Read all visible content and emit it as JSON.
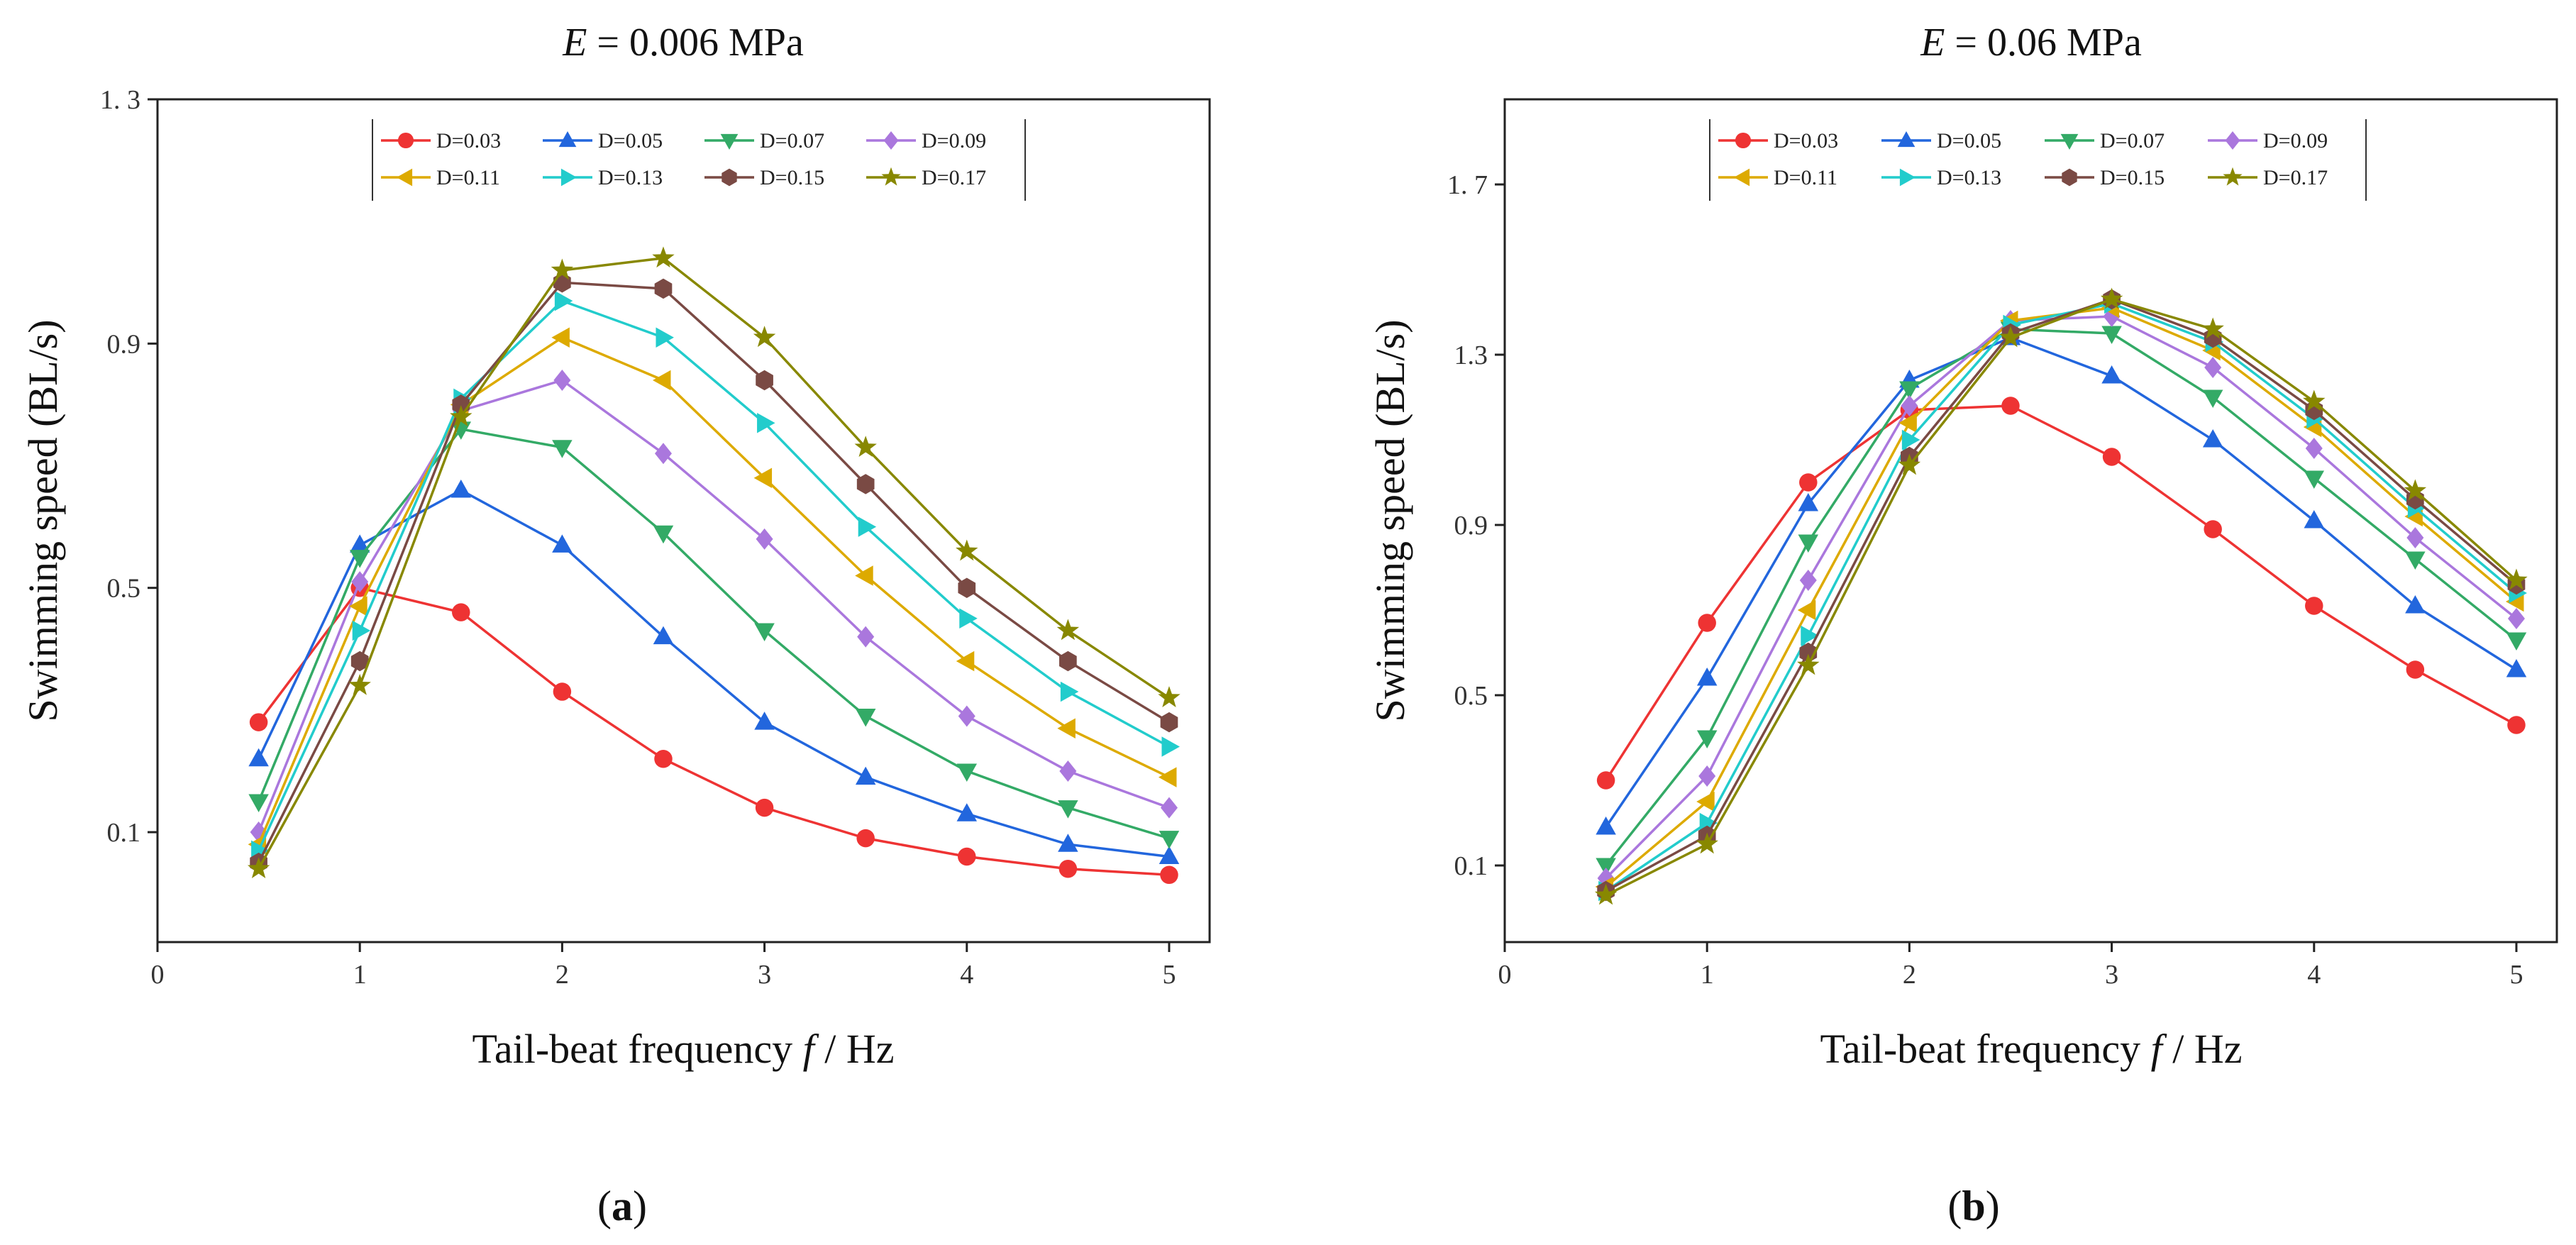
{
  "chart_data": [
    {
      "type": "line",
      "caption": "a",
      "title_var": "E",
      "title_rest": " = 0.006 MPa",
      "xlabel_main": "Tail-beat frequency ",
      "xlabel_var": "f",
      "xlabel_unit": " / Hz",
      "ylabel": "Swimming speed (BL/s)",
      "xlim": [
        0,
        5.2
      ],
      "ylim": [
        -0.08,
        1.3
      ],
      "xticks": [
        0,
        1,
        2,
        3,
        4,
        5
      ],
      "xtick_labels": [
        "0",
        "1",
        "2",
        "3",
        "4",
        "5"
      ],
      "yticks": [
        0.1,
        0.5,
        0.9,
        1.3
      ],
      "ytick_labels": [
        "0.1",
        "0.5",
        "0.9",
        "1. 3"
      ],
      "legend_position": "top-center",
      "x": [
        0.5,
        1,
        1.5,
        2,
        2.5,
        3,
        3.5,
        4,
        4.5,
        5
      ],
      "series": [
        {
          "name": "D=0.03",
          "color": "#ee3333",
          "marker": "circle",
          "values": [
            0.28,
            0.5,
            0.46,
            0.33,
            0.22,
            0.14,
            0.09,
            0.06,
            0.04,
            0.03
          ]
        },
        {
          "name": "D=0.05",
          "color": "#2266dd",
          "marker": "triangle-up",
          "values": [
            0.22,
            0.57,
            0.66,
            0.57,
            0.42,
            0.28,
            0.19,
            0.13,
            0.08,
            0.06
          ]
        },
        {
          "name": "D=0.07",
          "color": "#33aa66",
          "marker": "triangle-down",
          "values": [
            0.15,
            0.55,
            0.76,
            0.73,
            0.59,
            0.43,
            0.29,
            0.2,
            0.14,
            0.09
          ]
        },
        {
          "name": "D=0.09",
          "color": "#aa77dd",
          "marker": "diamond",
          "values": [
            0.1,
            0.51,
            0.79,
            0.84,
            0.72,
            0.58,
            0.42,
            0.29,
            0.2,
            0.14
          ]
        },
        {
          "name": "D=0.11",
          "color": "#ddaa00",
          "marker": "triangle-left",
          "values": [
            0.08,
            0.47,
            0.8,
            0.91,
            0.84,
            0.68,
            0.52,
            0.38,
            0.27,
            0.19
          ]
        },
        {
          "name": "D=0.13",
          "color": "#22cccc",
          "marker": "triangle-right",
          "values": [
            0.07,
            0.43,
            0.81,
            0.97,
            0.91,
            0.77,
            0.6,
            0.45,
            0.33,
            0.24
          ]
        },
        {
          "name": "D=0.15",
          "color": "#7a4a44",
          "marker": "hexagon",
          "values": [
            0.05,
            0.38,
            0.8,
            1.0,
            0.99,
            0.84,
            0.67,
            0.5,
            0.38,
            0.28
          ]
        },
        {
          "name": "D=0.17",
          "color": "#888800",
          "marker": "star",
          "values": [
            0.04,
            0.34,
            0.78,
            1.02,
            1.04,
            0.91,
            0.73,
            0.56,
            0.43,
            0.32
          ]
        }
      ]
    },
    {
      "type": "line",
      "caption": "b",
      "title_var": "E",
      "title_rest": " = 0.06 MPa",
      "xlabel_main": "Tail-beat frequency ",
      "xlabel_var": "f",
      "xlabel_unit": " / Hz",
      "ylabel": "Swimming speed (BL/s)",
      "xlim": [
        0,
        5.2
      ],
      "ylim": [
        -0.08,
        1.9
      ],
      "xticks": [
        0,
        1,
        2,
        3,
        4,
        5
      ],
      "xtick_labels": [
        "0",
        "1",
        "2",
        "3",
        "4",
        "5"
      ],
      "yticks": [
        0.1,
        0.5,
        0.9,
        1.3,
        1.7
      ],
      "ytick_labels": [
        "0.1",
        "0.5",
        "0.9",
        "1.3",
        "1. 7"
      ],
      "legend_position": "top-center",
      "x": [
        0.5,
        1,
        1.5,
        2,
        2.5,
        3,
        3.5,
        4,
        4.5,
        5
      ],
      "series": [
        {
          "name": "D=0.03",
          "color": "#ee3333",
          "marker": "circle",
          "values": [
            0.3,
            0.67,
            1.0,
            1.17,
            1.18,
            1.06,
            0.89,
            0.71,
            0.56,
            0.43
          ]
        },
        {
          "name": "D=0.05",
          "color": "#2266dd",
          "marker": "triangle-up",
          "values": [
            0.19,
            0.54,
            0.95,
            1.24,
            1.34,
            1.25,
            1.1,
            0.91,
            0.71,
            0.56
          ]
        },
        {
          "name": "D=0.07",
          "color": "#33aa66",
          "marker": "triangle-down",
          "values": [
            0.1,
            0.4,
            0.86,
            1.22,
            1.36,
            1.35,
            1.2,
            1.01,
            0.82,
            0.63
          ]
        },
        {
          "name": "D=0.09",
          "color": "#aa77dd",
          "marker": "diamond",
          "values": [
            0.07,
            0.31,
            0.77,
            1.18,
            1.38,
            1.39,
            1.27,
            1.08,
            0.87,
            0.68
          ]
        },
        {
          "name": "D=0.11",
          "color": "#ddaa00",
          "marker": "triangle-left",
          "values": [
            0.05,
            0.25,
            0.7,
            1.14,
            1.38,
            1.41,
            1.31,
            1.13,
            0.92,
            0.72
          ]
        },
        {
          "name": "D=0.13",
          "color": "#22cccc",
          "marker": "triangle-right",
          "values": [
            0.04,
            0.2,
            0.64,
            1.1,
            1.37,
            1.42,
            1.33,
            1.15,
            0.94,
            0.74
          ]
        },
        {
          "name": "D=0.15",
          "color": "#7a4a44",
          "marker": "hexagon",
          "values": [
            0.04,
            0.17,
            0.6,
            1.06,
            1.35,
            1.43,
            1.34,
            1.17,
            0.96,
            0.76
          ]
        },
        {
          "name": "D=0.17",
          "color": "#888800",
          "marker": "star",
          "values": [
            0.03,
            0.15,
            0.57,
            1.04,
            1.34,
            1.43,
            1.36,
            1.19,
            0.98,
            0.77
          ]
        }
      ]
    }
  ]
}
